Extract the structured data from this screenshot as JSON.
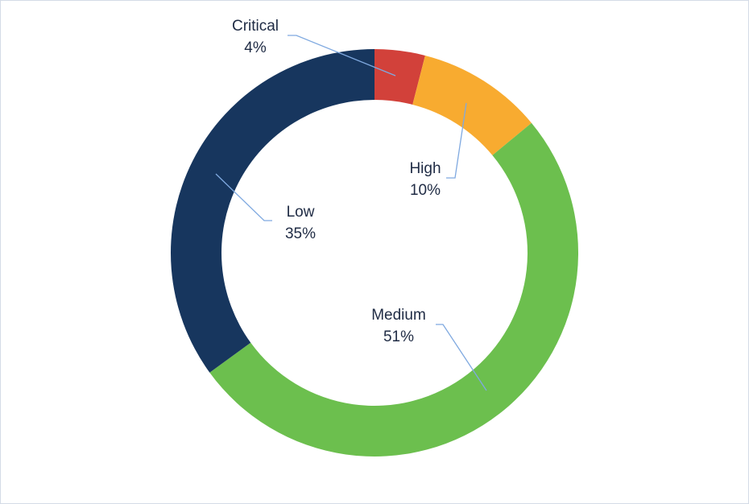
{
  "chart_data": {
    "type": "pie",
    "variant": "donut",
    "title": "",
    "slices": [
      {
        "label": "Critical",
        "percent_label": "4%",
        "value": 4,
        "color": "#d2413a"
      },
      {
        "label": "High",
        "percent_label": "10%",
        "value": 10,
        "color": "#f8ab30"
      },
      {
        "label": "Medium",
        "percent_label": "51%",
        "value": 51,
        "color": "#6cbf4e"
      },
      {
        "label": "Low",
        "percent_label": "35%",
        "value": 35,
        "color": "#17365e"
      }
    ],
    "leader_line_color": "#7fa9e0",
    "legend": "none"
  }
}
